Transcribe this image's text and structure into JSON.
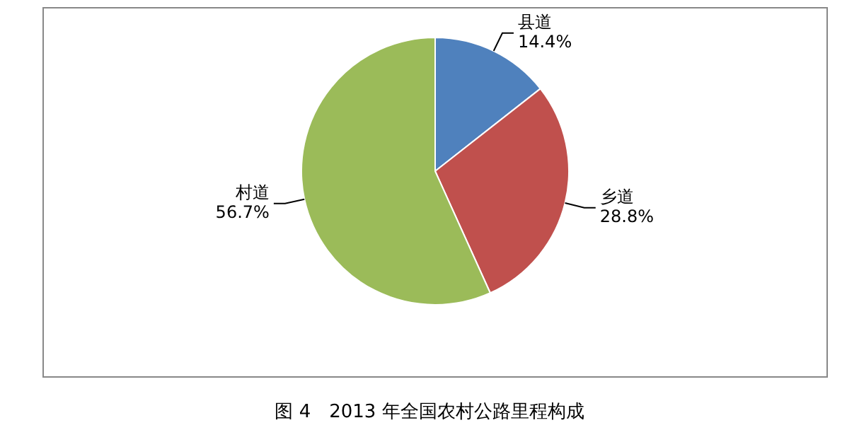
{
  "chart_data": {
    "type": "pie",
    "title": "图 4　2013 年全国农村公路里程构成",
    "categories": [
      "县道",
      "乡道",
      "村道"
    ],
    "values": [
      14.4,
      28.8,
      56.7
    ],
    "value_labels": [
      "14.4%",
      "28.8%",
      "56.7%"
    ],
    "colors": [
      "#4f81bd",
      "#c0504d",
      "#9bbb59"
    ],
    "legend": false
  }
}
